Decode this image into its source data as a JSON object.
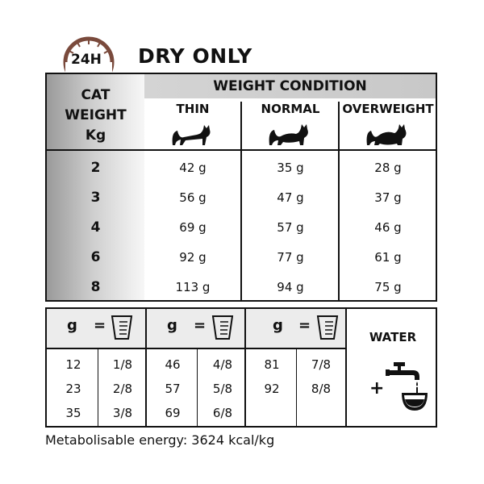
{
  "header": {
    "clock_label": "24H",
    "title": "DRY ONLY",
    "clock_icon": "clock-icon"
  },
  "weight_table": {
    "group_header": "WEIGHT CONDITION",
    "first_column_header": [
      "CAT",
      "WEIGHT",
      "Kg"
    ],
    "columns": [
      {
        "label": "THIN",
        "icon": "cat-thin-icon"
      },
      {
        "label": "NORMAL",
        "icon": "cat-normal-icon"
      },
      {
        "label": "OVERWEIGHT",
        "icon": "cat-overweight-icon"
      }
    ],
    "rows": [
      {
        "weight": "2",
        "thin": "42 g",
        "normal": "35 g",
        "overweight": "28 g"
      },
      {
        "weight": "3",
        "thin": "56 g",
        "normal": "47 g",
        "overweight": "37 g"
      },
      {
        "weight": "4",
        "thin": "69 g",
        "normal": "57 g",
        "overweight": "46 g"
      },
      {
        "weight": "6",
        "thin": "92 g",
        "normal": "77 g",
        "overweight": "61 g"
      },
      {
        "weight": "8",
        "thin": "113 g",
        "normal": "94 g",
        "overweight": "75 g"
      }
    ]
  },
  "conversion_table": {
    "gram_symbol": "g",
    "equals": "=",
    "cup_icon": "measuring-cup-icon",
    "water_label": "WATER",
    "plus": "+",
    "water_icon": "tap-water-icon",
    "groups": [
      {
        "rows": [
          [
            "12",
            "1/8"
          ],
          [
            "23",
            "2/8"
          ],
          [
            "35",
            "3/8"
          ]
        ]
      },
      {
        "rows": [
          [
            "46",
            "4/8"
          ],
          [
            "57",
            "5/8"
          ],
          [
            "69",
            "6/8"
          ]
        ]
      },
      {
        "rows": [
          [
            "81",
            "7/8"
          ],
          [
            "92",
            "8/8"
          ],
          [
            "",
            ""
          ]
        ]
      }
    ]
  },
  "footer": {
    "energy": "Metabolisable energy: 3624 kcal/kg"
  }
}
